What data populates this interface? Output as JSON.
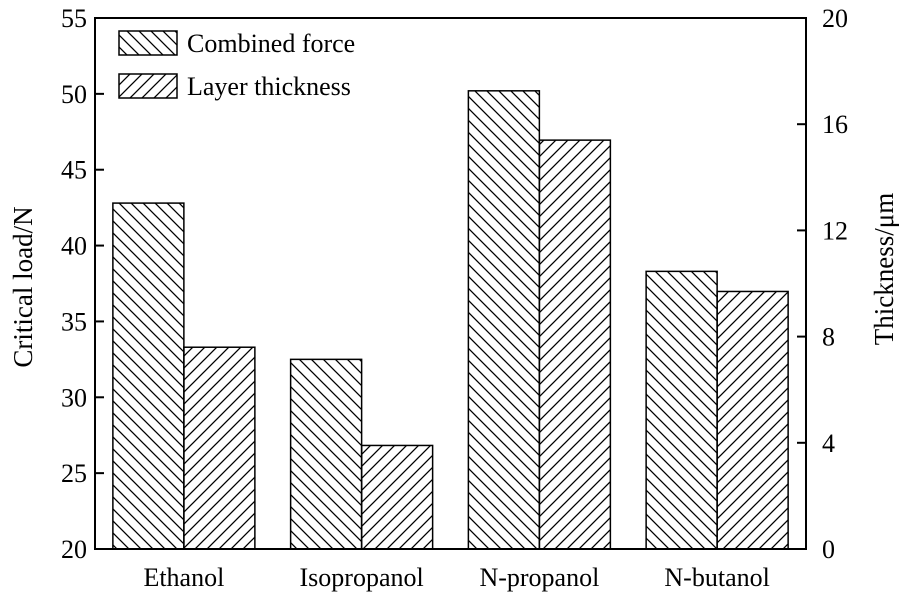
{
  "chart_data": {
    "type": "bar",
    "categories": [
      "Ethanol",
      "Isopropanol",
      "N-propanol",
      "N-butanol"
    ],
    "series": [
      {
        "name": "Combined force",
        "axis": "left",
        "pattern": "back-diagonal-hatch",
        "values": [
          42.8,
          32.5,
          50.2,
          38.3
        ]
      },
      {
        "name": "Layer thickness",
        "axis": "right",
        "pattern": "forward-diagonal-hatch",
        "values": [
          7.6,
          3.9,
          15.4,
          9.7
        ]
      }
    ],
    "ylabel": "Critical load/N",
    "ylim": [
      20,
      55
    ],
    "yticks": [
      "20",
      "25",
      "30",
      "35",
      "40",
      "45",
      "50",
      "55"
    ],
    "y2label": "Thickness/μm",
    "y2lim": [
      0,
      20
    ],
    "y2ticks": [
      "0",
      "4",
      "8",
      "12",
      "16",
      "20"
    ],
    "grid": false,
    "legend_position": "top-left",
    "colors": {
      "bar_fill": "#ffffff",
      "stroke": "#000000"
    }
  }
}
